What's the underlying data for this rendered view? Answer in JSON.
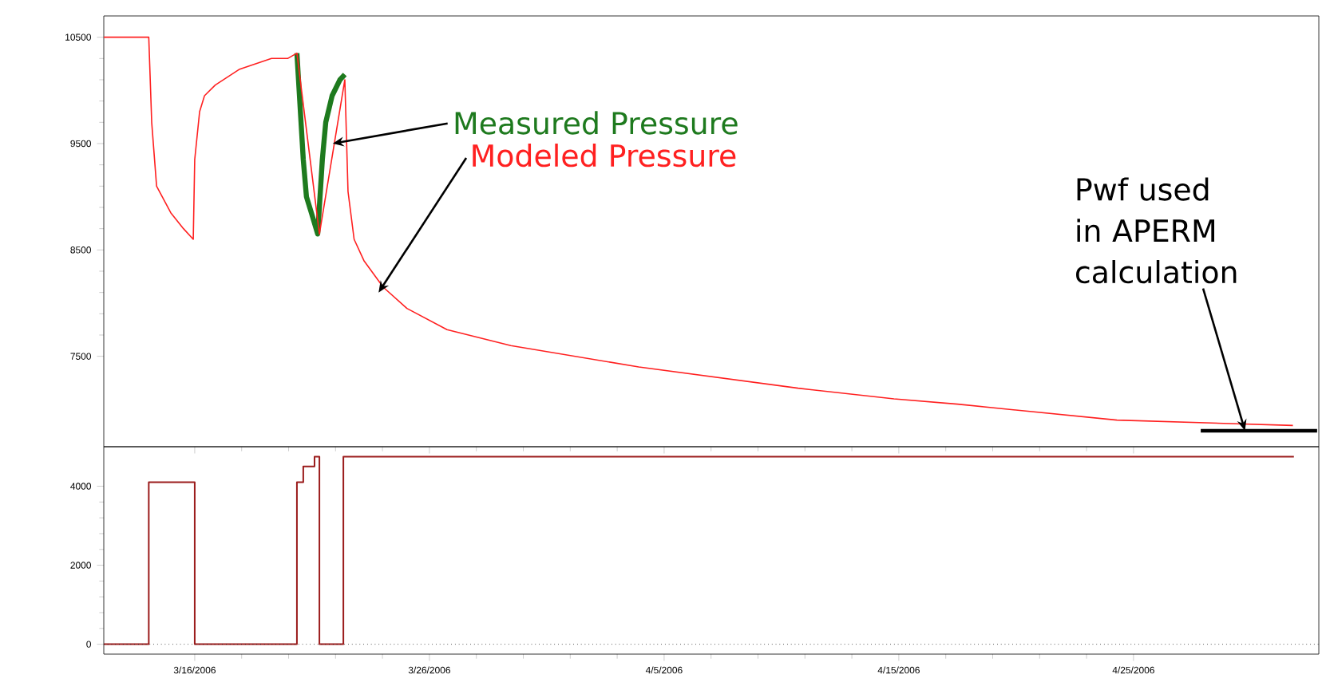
{
  "chart_data": [
    {
      "type": "line",
      "xlim": [
        "2006-03-12T03:00",
        "2006-05-02T21:30"
      ],
      "ylim": [
        6650,
        10700
      ],
      "yticks": [
        10500,
        9500,
        8500,
        7500
      ],
      "xticks": [
        {
          "value": "2006-03-16",
          "label": null
        },
        {
          "value": "2006-03-26",
          "label": null
        },
        {
          "value": "2006-04-05",
          "label": null
        },
        {
          "value": "2006-04-15",
          "label": null
        },
        {
          "value": "2006-04-25",
          "label": null
        }
      ],
      "tick_labels": "y",
      "series": [
        {
          "color": "#1e7a1e",
          "x": [
            "2006-03-20T08:30",
            "2006-03-20T15:00",
            "2006-03-20T18:15",
            "2006-03-20T23:15",
            "2006-03-21T05:45",
            "2006-03-21T10:30",
            "2006-03-21T14:00",
            "2006-03-21T20:30",
            "2006-03-22T04:30",
            "2006-03-22T09:30"
          ],
          "values": [
            10350,
            9350,
            9000,
            8850,
            8650,
            9350,
            9700,
            9950,
            10100,
            10150
          ]
        },
        {
          "color": "#ff2020",
          "x": [
            "2006-03-12T03:00",
            "2006-03-14T01:00",
            "2006-03-14T04:00",
            "2006-03-14T09:00",
            "2006-03-14T23:30",
            "2006-03-15T12:30",
            "2006-03-15T22:30",
            "2006-03-16T00:00",
            "2006-03-16T05:00",
            "2006-03-16T10:00",
            "2006-03-16T21:00",
            "2006-03-17T22:00",
            "2006-03-19T06:30",
            "2006-03-19T23:00",
            "2006-03-20T08:30",
            "2006-03-21T07:30",
            "2006-03-22T09:30",
            "2006-03-22T12:45",
            "2006-03-22T19:00",
            "2006-03-23T05:00",
            "2006-03-24T00:45",
            "2006-03-25T01:00",
            "2006-03-26T18:00",
            "2006-03-29T11:15",
            "2006-04-03T22:00",
            "2006-04-10T17:00",
            "2006-04-14T19:00",
            "2006-04-17T12:00",
            "2006-04-24T07:00",
            "2006-05-01T19:00"
          ],
          "values": [
            10500,
            10500,
            9700,
            9100,
            8850,
            8700,
            8600,
            9350,
            9800,
            9950,
            10050,
            10200,
            10300,
            10300,
            10350,
            8650,
            10100,
            9050,
            8600,
            8400,
            8150,
            7950,
            7750,
            7600,
            7400,
            7200,
            7100,
            7050,
            6900,
            6850
          ]
        },
        {
          "color": "#000000",
          "x": [
            "2006-04-27T20:45",
            "2006-05-02T19:45"
          ],
          "values": [
            6800,
            6800
          ]
        }
      ],
      "annotations": [
        {
          "text": "Measured Pressure",
          "x": "2006-03-21T21:00",
          "y": 9500
        },
        {
          "text": "Modeled Pressure",
          "x": "2006-03-23T20:00",
          "y": 8100
        },
        {
          "text": "Pwf used in APERM calculation",
          "x": "2006-04-29T18:00",
          "y": 6800
        }
      ]
    },
    {
      "type": "step",
      "xlim": [
        "2006-03-12T03:00",
        "2006-05-02T21:30"
      ],
      "ylim": [
        -250,
        5000
      ],
      "yticks": [
        4000,
        2000,
        0
      ],
      "xticks": [
        {
          "value": "2006-03-16",
          "label": "3/16/2006"
        },
        {
          "value": "2006-03-26",
          "label": "3/26/2006"
        },
        {
          "value": "2006-04-05",
          "label": "4/5/2006"
        },
        {
          "value": "2006-04-15",
          "label": "4/15/2006"
        },
        {
          "value": "2006-04-25",
          "label": "4/25/2006"
        }
      ],
      "series": [
        {
          "color": "#9b1c1c",
          "x": [
            "2006-03-12T03:00",
            "2006-03-14T01:00",
            "2006-03-16T00:00",
            "2006-03-20T08:30",
            "2006-03-20T15:00",
            "2006-03-21T02:30",
            "2006-03-21T07:30",
            "2006-03-22T08:00",
            "2006-05-01T20:00"
          ],
          "values": [
            0,
            4100,
            0,
            4100,
            4500,
            4750,
            0,
            4750,
            4750
          ]
        }
      ],
      "ref_lines": [
        {
          "axis": "y",
          "value": 0,
          "line_style": "dotted",
          "color": "#000000"
        }
      ]
    }
  ]
}
